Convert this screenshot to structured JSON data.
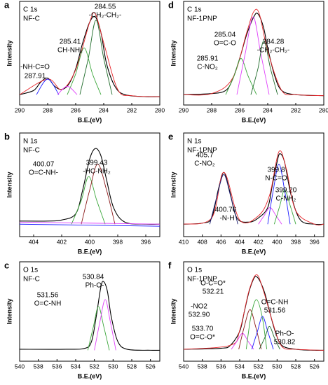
{
  "chart_data": [
    {
      "type": "line",
      "panel": "a",
      "title": "C 1s",
      "subtitle": "NF-C",
      "x_label": "B.E.(eV)",
      "y_label": "Intensity",
      "xlim": [
        290,
        280
      ],
      "xticks": [
        290,
        288,
        286,
        284,
        282,
        280
      ],
      "ylim": [
        0,
        100
      ],
      "series": [
        {
          "color": "#000000",
          "x": [
            290,
            289,
            288.5,
            288,
            287.5,
            287,
            286.5,
            286,
            285.5,
            285,
            284.6,
            284.2,
            283.8,
            283.2,
            282.5,
            281,
            280
          ],
          "values": [
            10,
            14,
            22,
            26,
            18,
            15,
            20,
            35,
            60,
            80,
            85,
            70,
            40,
            18,
            10,
            8,
            8
          ]
        },
        {
          "color": "#e8262b",
          "x": [
            290,
            288,
            287,
            286,
            285,
            284.6,
            284,
            283,
            282,
            280
          ],
          "values": [
            10,
            25,
            15,
            34,
            80,
            88,
            60,
            15,
            9,
            8
          ]
        },
        {
          "color": "#3aa63a",
          "x": [
            286.6,
            286,
            285.4,
            284.8,
            284.2
          ],
          "values": [
            10,
            30,
            55,
            30,
            10
          ]
        },
        {
          "color": "#1f6b2a",
          "x": [
            285.7,
            285.1,
            284.55,
            284.0,
            283.4
          ],
          "values": [
            10,
            45,
            82,
            45,
            10
          ]
        },
        {
          "color": "#1a1aff",
          "x": [
            288.8,
            288,
            287.2
          ],
          "values": [
            10,
            25,
            10
          ]
        },
        {
          "color": "#e040fb",
          "x": [
            287.3,
            286.6,
            285.9
          ],
          "values": [
            10,
            18,
            10
          ]
        }
      ],
      "annotations": [
        "284.55",
        "-CH₂-CH₂-",
        "285.41",
        "CH-NH₂",
        "-NH-C=O",
        "287.91"
      ]
    },
    {
      "type": "line",
      "panel": "d",
      "title": "C 1s",
      "subtitle": "NF-1PNP",
      "x_label": "B.E.(eV)",
      "y_label": "Intensity",
      "xlim": [
        290,
        280
      ],
      "xticks": [
        290,
        288,
        286,
        284,
        282,
        280
      ],
      "ylim": [
        0,
        100
      ],
      "series": [
        {
          "color": "#000000",
          "x": [
            290,
            288,
            287,
            286.5,
            286,
            285.5,
            285,
            284.7,
            284.3,
            284,
            283.5,
            283,
            282,
            280
          ],
          "values": [
            10,
            11,
            14,
            25,
            45,
            68,
            85,
            88,
            75,
            55,
            28,
            14,
            10,
            9
          ]
        },
        {
          "color": "#e8262b",
          "x": [
            290,
            288,
            286.5,
            285.5,
            285,
            284.6,
            284,
            283,
            282,
            280
          ],
          "values": [
            10,
            11,
            26,
            70,
            90,
            88,
            52,
            14,
            10,
            9
          ]
        },
        {
          "color": "#3aa63a",
          "x": [
            287,
            286.4,
            285.91,
            285.4,
            284.8
          ],
          "values": [
            10,
            28,
            45,
            28,
            10
          ]
        },
        {
          "color": "#e040fb",
          "x": [
            286.2,
            285.6,
            285.04,
            284.5,
            283.9
          ],
          "values": [
            10,
            50,
            85,
            50,
            10
          ]
        },
        {
          "color": "#1f6b2a",
          "x": [
            285.2,
            284.7,
            284.28,
            283.8,
            283.3
          ],
          "values": [
            10,
            35,
            62,
            35,
            10
          ]
        }
      ],
      "annotations": [
        "284.28",
        "-CH₂-CH₂-",
        "285.04",
        "O=C-O",
        "285.91",
        "C-NO₂"
      ]
    },
    {
      "type": "line",
      "panel": "b",
      "title": "N 1s",
      "subtitle": "NF-C",
      "x_label": "B.E.(eV)",
      "y_label": "Intensity",
      "xlim": [
        405,
        395
      ],
      "xticks": [
        404,
        402,
        400,
        398,
        396
      ],
      "ylim": [
        0,
        100
      ],
      "series": [
        {
          "color": "#000000",
          "x": [
            405,
            403,
            402,
            401,
            400.5,
            400,
            399.6,
            399.2,
            398.8,
            398.3,
            397.5,
            396,
            395
          ],
          "values": [
            15,
            15,
            16,
            22,
            45,
            75,
            85,
            78,
            55,
            28,
            14,
            12,
            12
          ]
        },
        {
          "color": "#3aa63a",
          "x": [
            401.3,
            400.6,
            400.07,
            399.5,
            398.9
          ],
          "values": [
            12,
            35,
            58,
            35,
            12
          ]
        },
        {
          "color": "#8b1a1a",
          "x": [
            400.6,
            400,
            399.43,
            398.8,
            398.2
          ],
          "values": [
            12,
            45,
            70,
            45,
            12
          ]
        },
        {
          "color": "#e040fb",
          "x": [
            405,
            400,
            395
          ],
          "values": [
            14,
            13,
            12
          ]
        },
        {
          "color": "#1a1aff",
          "x": [
            405,
            395
          ],
          "values": [
            12,
            10
          ]
        }
      ],
      "annotations": [
        "400.07",
        "O=C-NH-",
        "399.43",
        "-HC-NH₂"
      ]
    },
    {
      "type": "line",
      "panel": "e",
      "title": "N 1s",
      "subtitle": "NF-1PNP",
      "x_label": "B.E.(eV)",
      "y_label": "Intensity",
      "xlim": [
        410,
        395
      ],
      "xticks": [
        410,
        408,
        406,
        404,
        402,
        400,
        398,
        396
      ],
      "ylim": [
        0,
        100
      ],
      "series": [
        {
          "color": "#000000",
          "x": [
            410,
            408,
            407,
            406.3,
            405.7,
            405.1,
            404.3,
            403,
            402,
            401,
            400.5,
            400,
            399.7,
            399.2,
            398.5,
            397.5,
            396,
            395
          ],
          "values": [
            12,
            13,
            18,
            45,
            62,
            45,
            18,
            14,
            18,
            28,
            50,
            72,
            80,
            72,
            40,
            16,
            12,
            12
          ]
        },
        {
          "color": "#e8262b",
          "x": [
            410,
            407,
            405.7,
            404,
            402,
            400.8,
            399.8,
            399,
            398,
            396,
            395
          ],
          "values": [
            12,
            18,
            62,
            16,
            20,
            40,
            82,
            65,
            25,
            12,
            12
          ]
        },
        {
          "color": "#1b1b6e",
          "x": [
            407.2,
            406.4,
            405.7,
            405,
            404.2
          ],
          "values": [
            12,
            40,
            60,
            40,
            12
          ]
        },
        {
          "color": "#e040fb",
          "x": [
            402,
            401.4,
            400.76,
            400.1,
            399.5
          ],
          "values": [
            12,
            20,
            28,
            20,
            12
          ]
        },
        {
          "color": "#1a1aff",
          "x": [
            401,
            400.4,
            399.8,
            399.2,
            398.6
          ],
          "values": [
            12,
            45,
            70,
            45,
            12
          ]
        },
        {
          "color": "#3aa63a",
          "x": [
            400.3,
            399.7,
            399.2,
            398.6,
            398.0
          ],
          "values": [
            12,
            30,
            45,
            30,
            12
          ]
        }
      ],
      "annotations": [
        "405.7",
        "C-NO₂",
        "399.8",
        "N-C=O",
        "400.76",
        "-N-H",
        "399.20",
        "C-NH₂"
      ]
    },
    {
      "type": "line",
      "panel": "c",
      "title": "O 1s",
      "subtitle": "NF-C",
      "x_label": "B.E.(eV)",
      "y_label": "Intensity",
      "xlim": [
        540,
        525
      ],
      "xticks": [
        540,
        538,
        536,
        534,
        532,
        530,
        528,
        526
      ],
      "ylim": [
        0,
        100
      ],
      "series": [
        {
          "color": "#000000",
          "x": [
            540,
            535,
            533,
            532.3,
            531.8,
            531.3,
            531,
            530.6,
            530.2,
            529.5,
            528.5,
            526,
            525
          ],
          "values": [
            12,
            12,
            13,
            20,
            45,
            75,
            80,
            70,
            45,
            20,
            12,
            11,
            11
          ]
        },
        {
          "color": "#3aa63a",
          "x": [
            532.7,
            532.1,
            531.56,
            531,
            530.4
          ],
          "values": [
            11,
            35,
            55,
            35,
            11
          ]
        },
        {
          "color": "#e040fb",
          "x": [
            532,
            531.4,
            530.84,
            530.3,
            529.7
          ],
          "values": [
            11,
            40,
            62,
            40,
            11
          ]
        }
      ],
      "annotations": [
        "530.84",
        "Ph-O-",
        "531.56",
        "O=C-NH"
      ]
    },
    {
      "type": "line",
      "panel": "f",
      "title": "O 1s",
      "subtitle": "NF-1PNP",
      "x_label": "B.E.(eV)",
      "y_label": "Intensity",
      "xlim": [
        540,
        525
      ],
      "xticks": [
        540,
        538,
        536,
        534,
        532,
        530,
        528,
        526
      ],
      "ylim": [
        0,
        100
      ],
      "series": [
        {
          "color": "#000000",
          "x": [
            540,
            536,
            535,
            534,
            533.5,
            533,
            532.5,
            532.2,
            531.8,
            531.3,
            530.8,
            530.2,
            529.5,
            528,
            526,
            525
          ],
          "values": [
            12,
            13,
            16,
            30,
            50,
            70,
            83,
            85,
            80,
            68,
            50,
            30,
            16,
            12,
            11,
            11
          ]
        },
        {
          "color": "#e8262b",
          "x": [
            540,
            535,
            534,
            533,
            532.2,
            531.5,
            530.5,
            529.5,
            528,
            525
          ],
          "values": [
            12,
            16,
            31,
            71,
            87,
            72,
            40,
            15,
            12,
            11
          ]
        },
        {
          "color": "#e040fb",
          "x": [
            534.9,
            534.3,
            533.7,
            533.1,
            532.5
          ],
          "values": [
            12,
            20,
            28,
            20,
            12
          ]
        },
        {
          "color": "#8b1a1a",
          "x": [
            534.1,
            533.5,
            532.9,
            532.3,
            531.7
          ],
          "values": [
            12,
            35,
            52,
            35,
            12
          ]
        },
        {
          "color": "#3aa63a",
          "x": [
            533.3,
            532.8,
            532.21,
            531.6,
            531.1
          ],
          "values": [
            12,
            45,
            62,
            45,
            12
          ]
        },
        {
          "color": "#1a1aff",
          "x": [
            532.7,
            532.1,
            531.56,
            531,
            530.4
          ],
          "values": [
            12,
            30,
            45,
            30,
            12
          ]
        },
        {
          "color": "#1f6b2a",
          "x": [
            531.9,
            531.3,
            530.82,
            530.3,
            529.7
          ],
          "values": [
            12,
            24,
            35,
            24,
            12
          ]
        }
      ],
      "annotations": [
        "O-C=O*",
        "532.21",
        "-NO2",
        "532.90",
        "533.70",
        "O=C-O*",
        "O=C-NH",
        "531.56",
        "Ph-O-",
        "530.82"
      ]
    }
  ]
}
